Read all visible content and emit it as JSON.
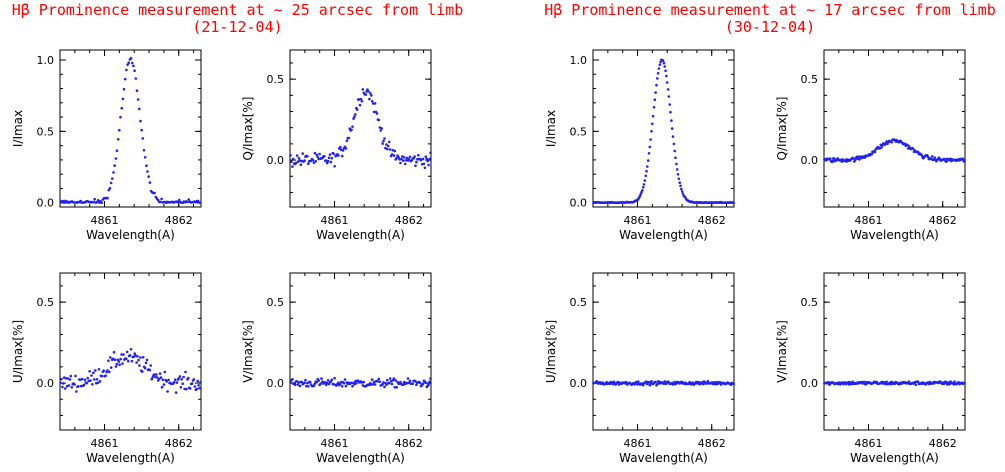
{
  "panels_left": {
    "title_line1": "Hβ Prominence measurement at ~ 25 arcsec from limb",
    "title_line2": "(21-12-04)"
  },
  "panels_right": {
    "title_line1": "Hβ Prominence measurement at ~ 17 arcsec from limb",
    "title_line2": "(30-12-04)"
  },
  "colors": {
    "title": "#ff0000",
    "points": "#2222ee",
    "axes": "#000000"
  },
  "chart_data": [
    {
      "type": "scatter",
      "group": "21-12-04",
      "stokes": "I",
      "xlabel": "Wavelength(A)",
      "ylabel": "I/Imax",
      "xlim": [
        4860.4,
        4862.3
      ],
      "ylim": [
        -0.03,
        1.07
      ],
      "xticks": [
        4861,
        4862
      ],
      "yticks": [
        0.0,
        0.5,
        1.0
      ],
      "ytick_labels": [
        "0.0",
        "0.5",
        "1.0"
      ],
      "profile": {
        "kind": "gauss",
        "center": 4861.35,
        "sigma": 0.13,
        "amp": 1.0,
        "base": 0.0,
        "noise": 0.02,
        "positive": true,
        "n": 120
      }
    },
    {
      "type": "scatter",
      "group": "21-12-04",
      "stokes": "Q",
      "xlabel": "Wavelength(A)",
      "ylabel": "Q/Imax[%]",
      "xlim": [
        4860.4,
        4862.3
      ],
      "ylim": [
        -0.29,
        0.68
      ],
      "xticks": [
        4861,
        4862
      ],
      "yticks": [
        0.0,
        0.5
      ],
      "ytick_labels": [
        "0.0",
        "0.5"
      ],
      "profile": {
        "kind": "gauss",
        "center": 4861.42,
        "sigma": 0.16,
        "amp": 0.43,
        "base": 0.0,
        "noise": 0.04,
        "positive": false,
        "n": 150
      }
    },
    {
      "type": "scatter",
      "group": "21-12-04",
      "stokes": "U",
      "xlabel": "Wavelength(A)",
      "ylabel": "U/Imax[%]",
      "xlim": [
        4860.4,
        4862.3
      ],
      "ylim": [
        -0.29,
        0.68
      ],
      "xticks": [
        4861,
        4862
      ],
      "yticks": [
        0.0,
        0.5
      ],
      "ytick_labels": [
        "0.0",
        "0.5"
      ],
      "profile": {
        "kind": "gauss",
        "center": 4861.3,
        "sigma": 0.25,
        "amp": 0.16,
        "base": 0.0,
        "noise": 0.05,
        "positive": false,
        "n": 150
      }
    },
    {
      "type": "scatter",
      "group": "21-12-04",
      "stokes": "V",
      "xlabel": "Wavelength(A)",
      "ylabel": "V/Imax[%]",
      "xlim": [
        4860.4,
        4862.3
      ],
      "ylim": [
        -0.29,
        0.68
      ],
      "xticks": [
        4861,
        4862
      ],
      "yticks": [
        0.0,
        0.5
      ],
      "ytick_labels": [
        "0.0",
        "0.5"
      ],
      "profile": {
        "kind": "flat",
        "center": 4861.3,
        "sigma": 0.2,
        "amp": 0.0,
        "base": 0.0,
        "noise": 0.025,
        "positive": false,
        "n": 150
      }
    },
    {
      "type": "scatter",
      "group": "30-12-04",
      "stokes": "I",
      "xlabel": "Wavelength(A)",
      "ylabel": "I/Imax",
      "xlim": [
        4860.4,
        4862.3
      ],
      "ylim": [
        -0.03,
        1.07
      ],
      "xticks": [
        4861,
        4862
      ],
      "yticks": [
        0.0,
        0.5,
        1.0
      ],
      "ytick_labels": [
        "0.0",
        "0.5",
        "1.0"
      ],
      "profile": {
        "kind": "gauss",
        "center": 4861.33,
        "sigma": 0.12,
        "amp": 1.0,
        "base": 0.0,
        "noise": 0.004,
        "positive": true,
        "n": 170
      }
    },
    {
      "type": "scatter",
      "group": "30-12-04",
      "stokes": "Q",
      "xlabel": "Wavelength(A)",
      "ylabel": "Q/Imax[%]",
      "xlim": [
        4860.4,
        4862.3
      ],
      "ylim": [
        -0.29,
        0.68
      ],
      "xticks": [
        4861,
        4862
      ],
      "yticks": [
        0.0,
        0.5
      ],
      "ytick_labels": [
        "0.0",
        "0.5"
      ],
      "profile": {
        "kind": "gauss",
        "center": 4861.35,
        "sigma": 0.22,
        "amp": 0.12,
        "base": 0.0,
        "noise": 0.012,
        "positive": false,
        "n": 170
      }
    },
    {
      "type": "scatter",
      "group": "30-12-04",
      "stokes": "U",
      "xlabel": "Wavelength(A)",
      "ylabel": "U/Imax[%]",
      "xlim": [
        4860.4,
        4862.3
      ],
      "ylim": [
        -0.29,
        0.68
      ],
      "xticks": [
        4861,
        4862
      ],
      "yticks": [
        0.0,
        0.5
      ],
      "ytick_labels": [
        "0.0",
        "0.5"
      ],
      "profile": {
        "kind": "flat",
        "center": 4861.3,
        "sigma": 0.2,
        "amp": 0.0,
        "base": 0.0,
        "noise": 0.01,
        "positive": false,
        "n": 170
      }
    },
    {
      "type": "scatter",
      "group": "30-12-04",
      "stokes": "V",
      "xlabel": "Wavelength(A)",
      "ylabel": "V/Imax[%]",
      "xlim": [
        4860.4,
        4862.3
      ],
      "ylim": [
        -0.29,
        0.68
      ],
      "xticks": [
        4861,
        4862
      ],
      "yticks": [
        0.0,
        0.5
      ],
      "ytick_labels": [
        "0.0",
        "0.5"
      ],
      "profile": {
        "kind": "flat",
        "center": 4861.3,
        "sigma": 0.2,
        "amp": 0.0,
        "base": 0.0,
        "noise": 0.01,
        "positive": false,
        "n": 170
      }
    }
  ]
}
